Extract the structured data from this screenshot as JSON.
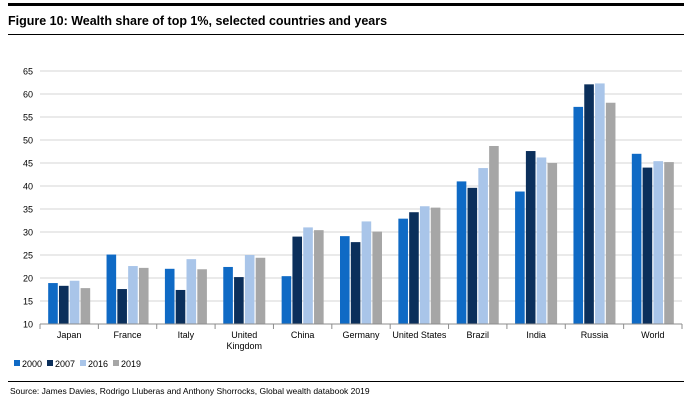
{
  "title": "Figure 10: Wealth share of top 1%, selected countries and years",
  "source": "Source: James Davies, Rodrigo Lluberas and Anthony Shorrocks, Global wealth databook 2019",
  "chart_data": {
    "type": "bar",
    "title": "Figure 10: Wealth share of top 1%, selected countries and years",
    "xlabel": "",
    "ylabel": "",
    "ylim": [
      10,
      65
    ],
    "yticks": [
      10,
      15,
      20,
      25,
      30,
      35,
      40,
      45,
      50,
      55,
      60,
      65
    ],
    "grid": true,
    "legend_position": "bottom-left",
    "categories": [
      [
        "Japan"
      ],
      [
        "France"
      ],
      [
        "Italy"
      ],
      [
        "United",
        "Kingdom"
      ],
      [
        "China"
      ],
      [
        "Germany"
      ],
      [
        "United States"
      ],
      [
        "Brazil"
      ],
      [
        "India"
      ],
      [
        "Russia"
      ],
      [
        "World"
      ]
    ],
    "series": [
      {
        "name": "2000",
        "color": "#0f6ac5",
        "values": [
          18.9,
          25.1,
          22.0,
          22.4,
          20.4,
          29.1,
          32.9,
          41.0,
          38.8,
          57.2,
          47.0
        ]
      },
      {
        "name": "2007",
        "color": "#0b2f5b",
        "values": [
          18.3,
          17.6,
          17.4,
          20.2,
          29.0,
          27.8,
          34.3,
          39.6,
          47.6,
          62.1,
          44.0
        ]
      },
      {
        "name": "2016",
        "color": "#a9c5e9",
        "values": [
          19.4,
          22.6,
          24.1,
          25.0,
          31.0,
          32.3,
          35.6,
          43.9,
          46.2,
          62.3,
          45.4
        ]
      },
      {
        "name": "2019",
        "color": "#a6a6a6",
        "values": [
          17.8,
          22.2,
          21.9,
          24.4,
          30.4,
          30.1,
          35.3,
          48.7,
          45.0,
          58.1,
          45.2
        ]
      }
    ]
  }
}
